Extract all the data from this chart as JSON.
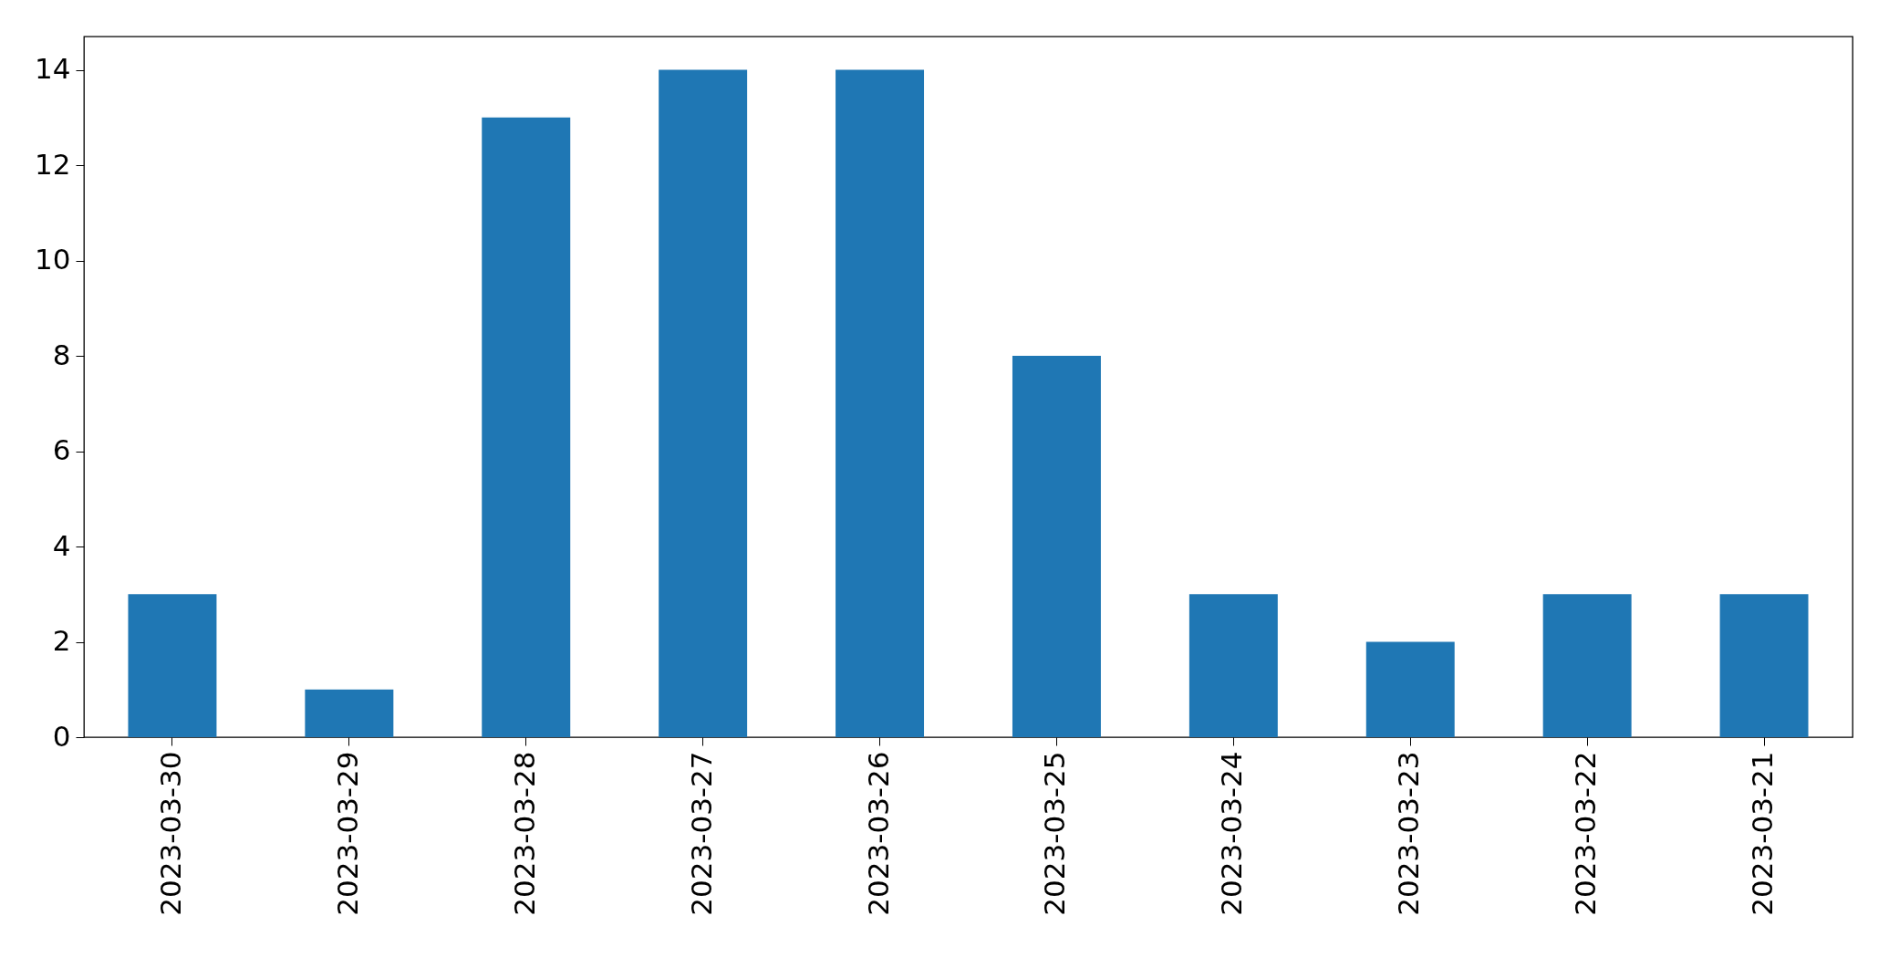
{
  "chart_data": {
    "type": "bar",
    "categories": [
      "2023-03-30",
      "2023-03-29",
      "2023-03-28",
      "2023-03-27",
      "2023-03-26",
      "2023-03-25",
      "2023-03-24",
      "2023-03-23",
      "2023-03-22",
      "2023-03-21"
    ],
    "values": [
      3,
      1,
      13,
      14,
      14,
      8,
      3,
      2,
      3,
      3
    ],
    "color": "#1f77b4",
    "ylim": [
      0,
      14.7
    ],
    "yticks": [
      0,
      2,
      4,
      6,
      8,
      10,
      12,
      14
    ],
    "grid": false
  }
}
